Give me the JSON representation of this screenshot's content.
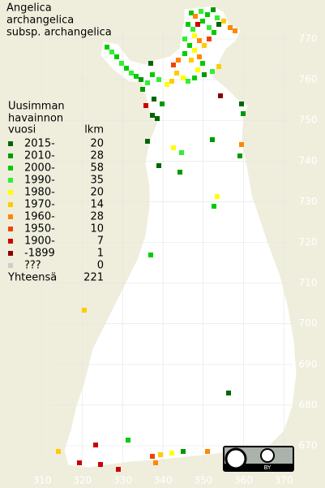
{
  "title": [
    "Angelica",
    "archangelica",
    "subsp. archangelica"
  ],
  "legend": {
    "header": [
      "Uusimman",
      "havainnon"
    ],
    "period_heading": "vuosi",
    "count_heading": "lkm",
    "items": [
      {
        "label": "2015-",
        "count": 20,
        "color": "#006600"
      },
      {
        "label": "2010-",
        "count": 28,
        "color": "#009900"
      },
      {
        "label": "2000-",
        "count": 58,
        "color": "#00cc00"
      },
      {
        "label": "1990-",
        "count": 35,
        "color": "#33ee33"
      },
      {
        "label": "1980-",
        "count": 20,
        "color": "#ffff00"
      },
      {
        "label": "1970-",
        "count": 14,
        "color": "#ffcc00"
      },
      {
        "label": "1960-",
        "count": 28,
        "color": "#ff8800"
      },
      {
        "label": "1950-",
        "count": 10,
        "color": "#ee4400"
      },
      {
        "label": "1900-",
        "count": 7,
        "color": "#cc0000"
      },
      {
        "label": "-1899",
        "count": 1,
        "color": "#880000"
      },
      {
        "label": "???",
        "count": 0,
        "color": "#cccccc"
      }
    ],
    "total_label": "Yhteensä",
    "total": 221
  },
  "grid": {
    "y_labels": [
      770,
      760,
      750,
      740,
      730,
      720,
      710,
      700,
      690,
      680,
      670
    ],
    "x_labels": [
      310,
      320,
      330,
      340,
      350,
      360,
      370
    ]
  },
  "license": "BY"
}
